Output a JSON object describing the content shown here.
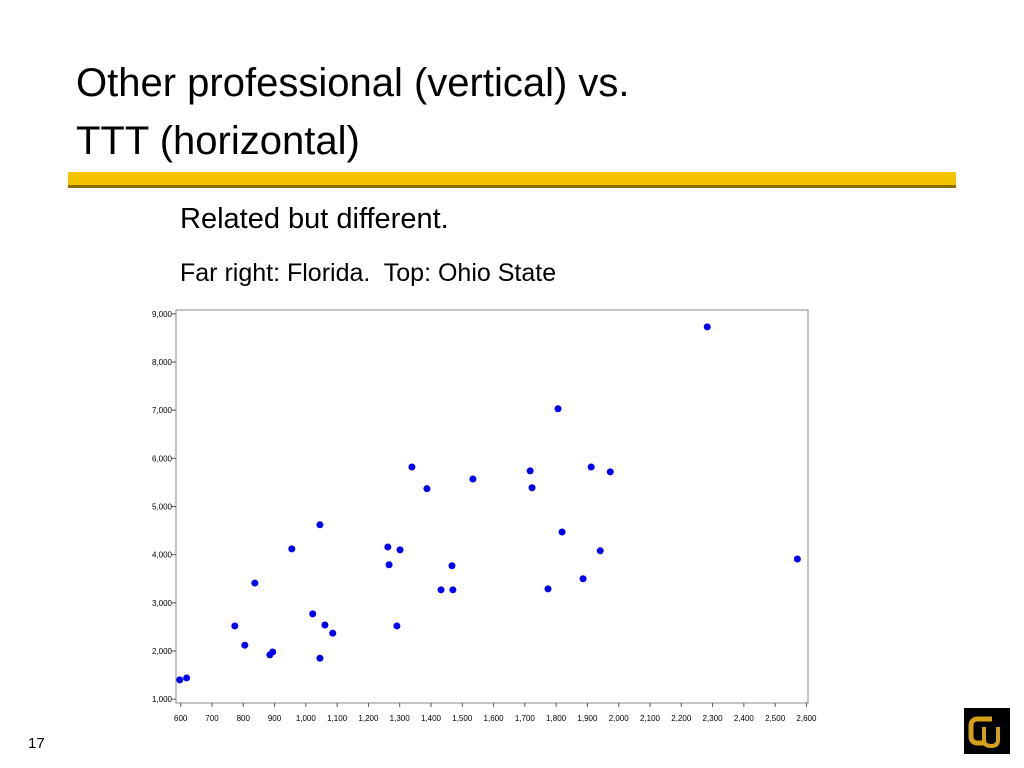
{
  "slide": {
    "title_lines": [
      "Other professional (vertical) vs.",
      "TTT (horizontal)"
    ],
    "bullets": [
      "Related but different.",
      "Far right: Florida.  Top: Ohio State"
    ],
    "page_number": "17"
  },
  "chart_data": {
    "type": "scatter",
    "color": "#0000ee",
    "xlim": [
      585,
      2605
    ],
    "ylim": [
      920,
      9080
    ],
    "xticks": [
      600,
      700,
      800,
      900,
      {
        "value": 1000,
        "label": "1,000"
      },
      {
        "value": 1100,
        "label": "1,100"
      },
      {
        "value": 1200,
        "label": "1,200"
      },
      {
        "value": 1300,
        "label": "1,300"
      },
      {
        "value": 1400,
        "label": "1,400"
      },
      {
        "value": 1500,
        "label": "1,500"
      },
      {
        "value": 1600,
        "label": "1,600"
      },
      {
        "value": 1700,
        "label": "1,700"
      },
      {
        "value": 1800,
        "label": "1,800"
      },
      {
        "value": 1900,
        "label": "1,900"
      },
      {
        "value": 2000,
        "label": "2,000"
      },
      {
        "value": 2100,
        "label": "2,100"
      },
      {
        "value": 2200,
        "label": "2,200"
      },
      {
        "value": 2300,
        "label": "2,300"
      },
      {
        "value": 2400,
        "label": "2,400"
      },
      {
        "value": 2500,
        "label": "2,500"
      },
      {
        "value": 2600,
        "label": "2,600"
      }
    ],
    "yticks": [
      {
        "value": 1000,
        "label": "1,000"
      },
      {
        "value": 2000,
        "label": "2,000"
      },
      {
        "value": 3000,
        "label": "3,000"
      },
      {
        "value": 4000,
        "label": "4,000"
      },
      {
        "value": 5000,
        "label": "5,000"
      },
      {
        "value": 6000,
        "label": "6,000"
      },
      {
        "value": 7000,
        "label": "7,000"
      },
      {
        "value": 8000,
        "label": "8,000"
      },
      {
        "value": 9000,
        "label": "9,000"
      }
    ],
    "x": [
      597,
      619,
      773,
      805,
      837,
      885,
      894,
      955,
      1022,
      1045,
      1045,
      1061,
      1086,
      1262,
      1266,
      1291,
      1301,
      1339,
      1387,
      1432,
      1467,
      1470,
      1534,
      1717,
      1723,
      1774,
      1806,
      1819,
      1886,
      1912,
      1941,
      1973,
      2283,
      2571
    ],
    "values": [
      1400,
      1440,
      2520,
      2120,
      3410,
      1920,
      1980,
      4120,
      2770,
      4620,
      1850,
      2540,
      2370,
      4160,
      3790,
      2520,
      4100,
      5820,
      5370,
      3270,
      3770,
      3270,
      5570,
      5740,
      5390,
      3290,
      7030,
      4470,
      3500,
      5820,
      4080,
      5720,
      8730,
      3910
    ]
  }
}
